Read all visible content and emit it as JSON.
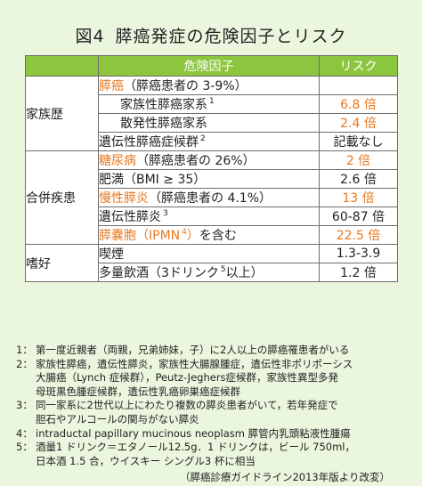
{
  "title": {
    "number": "図4",
    "text": "膵癌発症の危険因子とリスク"
  },
  "table": {
    "header": {
      "category": "",
      "factor": "危険因子",
      "risk": "リスク"
    },
    "groups": [
      {
        "category": "家族歴",
        "rows": [
          {
            "main": "膵癌",
            "rest": "（膵癌患者の 3-9%）",
            "sup": "",
            "risk": "",
            "indent": false,
            "orange": true
          },
          {
            "main": "",
            "rest": "家族性膵癌家系",
            "sup": "1",
            "risk": "6.8 倍",
            "indent": true,
            "orange": false,
            "riskOrange": true
          },
          {
            "main": "",
            "rest": "散発性膵癌家系",
            "sup": "",
            "risk": "2.4 倍",
            "indent": true,
            "orange": false,
            "riskOrange": true
          },
          {
            "main": "",
            "rest": "遺伝性膵癌症候群",
            "sup": "2",
            "risk": "記載なし",
            "indent": false,
            "orange": false,
            "riskOrange": false
          }
        ]
      },
      {
        "category": "合併疾患",
        "rows": [
          {
            "main": "糖尿病",
            "rest": "（膵癌患者の 26%）",
            "sup": "",
            "risk": "2 倍",
            "indent": false,
            "orange": true,
            "riskOrange": true
          },
          {
            "main": "",
            "rest": "肥満（BMI ≥ 35）",
            "sup": "",
            "risk": "2.6 倍",
            "indent": false,
            "orange": false,
            "riskOrange": false
          },
          {
            "main": "慢性膵炎",
            "rest": "（膵癌患者の 4.1%）",
            "sup": "",
            "risk": "13 倍",
            "indent": false,
            "orange": true,
            "riskOrange": true
          },
          {
            "main": "",
            "rest": "遺伝性膵炎",
            "sup": "3",
            "risk": "60-87 倍",
            "indent": false,
            "orange": false,
            "riskOrange": false
          },
          {
            "main": "膵嚢胞（IPMN",
            "rest": "を含む",
            "sup": "4",
            "risk": "22.5 倍",
            "indent": false,
            "orange": true,
            "riskOrange": true,
            "supInMain": true
          }
        ]
      },
      {
        "category": "嗜好",
        "rows": [
          {
            "main": "",
            "rest": "喫煙",
            "sup": "",
            "risk": "1.3-3.9",
            "indent": false,
            "orange": false,
            "riskOrange": false
          },
          {
            "main": "",
            "rest": "多量飲酒（3ドリンク",
            "sup": "5",
            "rest2": "以上）",
            "risk": "1.2 倍",
            "indent": false,
            "orange": false,
            "riskOrange": false
          }
        ]
      }
    ]
  },
  "notes": [
    {
      "num": "1：",
      "lines": [
        "第一度近親者（両親，兄弟姉妹，子）に2人以上の膵癌罹患者がいる"
      ]
    },
    {
      "num": "2：",
      "lines": [
        "家族性膵癌，遺伝性膵炎，家族性大腸腺腫症，遺伝性非ポリポーシス",
        "大腸癌（Lynch 症候群），Peutz-Jeghers症候群，家族性異型多発",
        "母斑黒色腫症候群，遺伝性乳癌卵巣癌症候群"
      ]
    },
    {
      "num": "3：",
      "lines": [
        "同一家系に2世代以上にわたり複数の膵炎患者がいて，若年発症で",
        "胆石やアルコールの関与がない膵炎"
      ]
    },
    {
      "num": "4：",
      "lines": [
        "intraductal papillary mucinous neoplasm 膵管内乳頭粘液性腫瘍"
      ]
    },
    {
      "num": "5：",
      "lines": [
        "酒量1 ドリンク＝エタノール12.5g．1 ドリンクは，ビール 750ml，",
        "日本酒 1.5 合，ウイスキー シングル3 杯に相当"
      ]
    }
  ],
  "source": "（膵癌診療ガイドライン2013年版より改変）"
}
